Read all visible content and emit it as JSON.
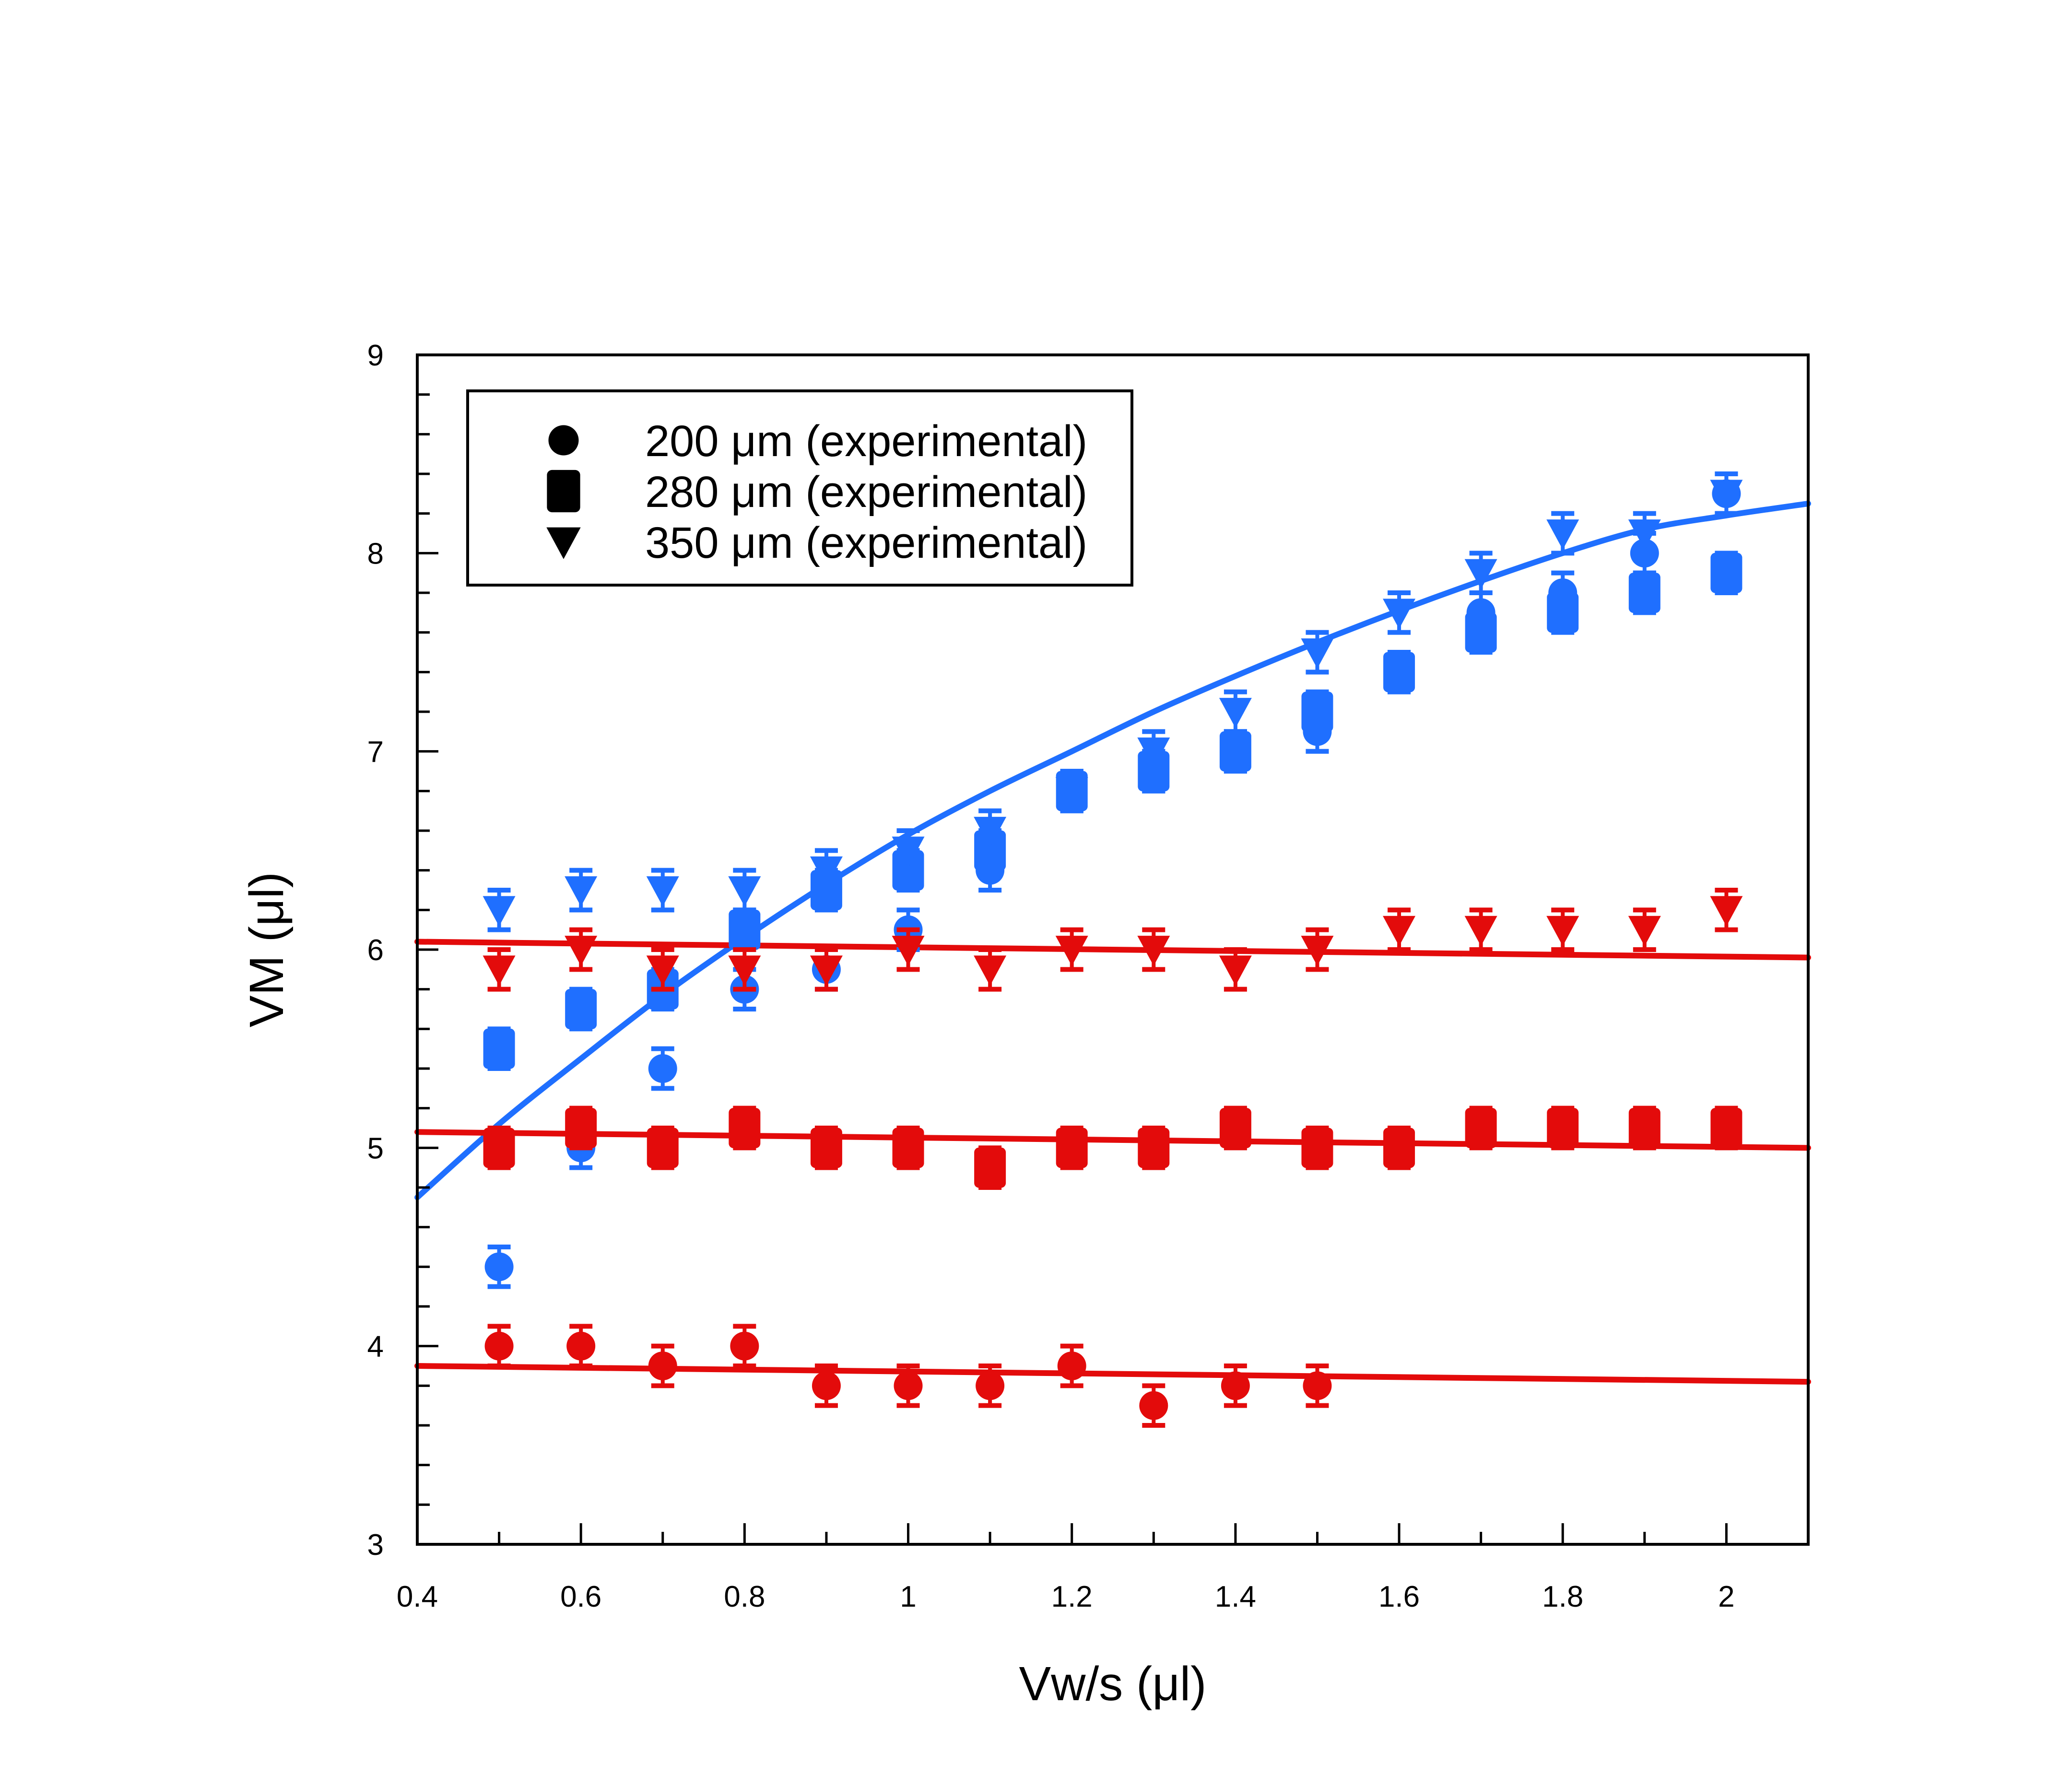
{
  "chart_data": {
    "type": "scatter",
    "title": "",
    "xlabel": "Vw/s (μl)",
    "ylabel": "VM (μl)",
    "xlim": [
      0.4,
      2.1
    ],
    "ylim": [
      3,
      9
    ],
    "x_ticks": [
      0.4,
      0.6,
      0.8,
      1,
      1.2,
      1.4,
      1.6,
      1.8,
      2
    ],
    "x_tick_labels": [
      "0.4",
      "0.6",
      "0.8",
      "1",
      "1.2",
      "1.4",
      "1.6",
      "1.8",
      "2"
    ],
    "y_ticks": [
      3,
      4,
      5,
      6,
      7,
      8,
      9
    ],
    "y_tick_labels": [
      "3",
      "4",
      "5",
      "6",
      "7",
      "8",
      "9"
    ],
    "grid": false,
    "legend": {
      "placement": "top-left",
      "entries": [
        {
          "marker": "circle",
          "label": "200 μm (experimental)"
        },
        {
          "marker": "square",
          "label": "280 μm (experimental)"
        },
        {
          "marker": "triangle-down",
          "label": "350 μm (experimental)"
        }
      ]
    },
    "colors": {
      "blue": "#1f6fff",
      "red": "#e30b0b",
      "axis": "#000000"
    },
    "error_bar": 0.1,
    "series": [
      {
        "name": "200 μm (blue)",
        "marker": "circle",
        "color": "#1f6fff",
        "x": [
          0.5,
          0.6,
          0.7,
          0.8,
          0.9,
          1.0,
          1.1,
          1.2,
          1.3,
          1.4,
          1.5,
          1.6,
          1.7,
          1.8,
          1.9,
          2.0
        ],
        "y": [
          4.4,
          5.0,
          5.4,
          5.8,
          5.9,
          6.1,
          6.4,
          6.8,
          6.9,
          7.0,
          7.1,
          7.4,
          7.7,
          7.8,
          8.0,
          8.3
        ]
      },
      {
        "name": "280 μm (blue)",
        "marker": "square",
        "color": "#1f6fff",
        "x": [
          0.5,
          0.6,
          0.7,
          0.8,
          0.9,
          1.0,
          1.1,
          1.2,
          1.3,
          1.4,
          1.5,
          1.6,
          1.7,
          1.8,
          1.9,
          2.0
        ],
        "y": [
          5.5,
          5.7,
          5.8,
          6.1,
          6.3,
          6.4,
          6.5,
          6.8,
          6.9,
          7.0,
          7.2,
          7.4,
          7.6,
          7.7,
          7.8,
          7.9
        ]
      },
      {
        "name": "350 μm (blue)",
        "marker": "triangle-down",
        "color": "#1f6fff",
        "x": [
          0.5,
          0.6,
          0.7,
          0.8,
          0.9,
          1.0,
          1.1,
          1.2,
          1.3,
          1.4,
          1.5,
          1.6,
          1.7,
          1.8,
          1.9,
          2.0
        ],
        "y": [
          6.2,
          6.3,
          6.3,
          6.3,
          6.4,
          6.5,
          6.6,
          6.8,
          7.0,
          7.2,
          7.5,
          7.7,
          7.9,
          8.1,
          8.1,
          8.3
        ]
      },
      {
        "name": "200 μm (red)",
        "marker": "circle",
        "color": "#e30b0b",
        "x": [
          0.5,
          0.6,
          0.7,
          0.8,
          0.9,
          1.0,
          1.1,
          1.2,
          1.3,
          1.4,
          1.5
        ],
        "y": [
          4.0,
          4.0,
          3.9,
          4.0,
          3.8,
          3.8,
          3.8,
          3.9,
          3.7,
          3.8,
          3.8
        ]
      },
      {
        "name": "280 μm (red)",
        "marker": "square",
        "color": "#e30b0b",
        "x": [
          0.5,
          0.6,
          0.7,
          0.8,
          0.9,
          1.0,
          1.1,
          1.2,
          1.3,
          1.4,
          1.5,
          1.6,
          1.7,
          1.8,
          1.9,
          2.0
        ],
        "y": [
          5.0,
          5.1,
          5.0,
          5.1,
          5.0,
          5.0,
          4.9,
          5.0,
          5.0,
          5.1,
          5.0,
          5.0,
          5.1,
          5.1,
          5.1,
          5.1
        ]
      },
      {
        "name": "350 μm (red)",
        "marker": "triangle-down",
        "color": "#e30b0b",
        "x": [
          0.5,
          0.6,
          0.7,
          0.8,
          0.9,
          1.0,
          1.1,
          1.2,
          1.3,
          1.4,
          1.5,
          1.6,
          1.7,
          1.8,
          1.9,
          2.0
        ],
        "y": [
          5.9,
          6.0,
          5.9,
          5.9,
          5.9,
          6.0,
          5.9,
          6.0,
          6.0,
          5.9,
          6.0,
          6.1,
          6.1,
          6.1,
          6.1,
          6.2
        ]
      }
    ],
    "fit_lines": [
      {
        "name": "blue fit",
        "color": "#1f6fff",
        "x": [
          0.4,
          0.5,
          0.6,
          0.7,
          0.8,
          0.9,
          1.0,
          1.1,
          1.2,
          1.3,
          1.4,
          1.5,
          1.6,
          1.7,
          1.8,
          1.9,
          2.0,
          2.1
        ],
        "y": [
          4.75,
          5.12,
          5.45,
          5.77,
          6.06,
          6.33,
          6.58,
          6.8,
          7.0,
          7.2,
          7.38,
          7.55,
          7.71,
          7.86,
          8.0,
          8.12,
          8.19,
          8.25
        ]
      },
      {
        "name": "red fit 350",
        "color": "#e30b0b",
        "x": [
          0.4,
          2.1
        ],
        "y": [
          6.04,
          5.96
        ]
      },
      {
        "name": "red fit 280",
        "color": "#e30b0b",
        "x": [
          0.4,
          2.1
        ],
        "y": [
          5.08,
          5.0
        ]
      },
      {
        "name": "red fit 200",
        "color": "#e30b0b",
        "x": [
          0.4,
          2.1
        ],
        "y": [
          3.9,
          3.82
        ]
      }
    ]
  }
}
